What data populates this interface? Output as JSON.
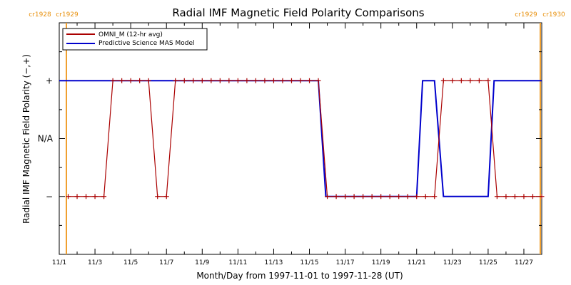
{
  "chart_data": {
    "type": "line",
    "title": "Radial IMF Magnetic Field Polarity Comparisons",
    "xlabel": "Month/Day from 1997-11-01 to 1997-11-28 (UT)",
    "ylabel": "Radial IMF Magnetic Field Polarity (−,+)",
    "xlim": [
      "1997-11-01",
      "1997-11-28"
    ],
    "x_tick_labels": [
      "11/1",
      "11/3",
      "11/5",
      "11/7",
      "11/9",
      "11/11",
      "11/13",
      "11/15",
      "11/17",
      "11/19",
      "11/21",
      "11/23",
      "11/25",
      "11/27"
    ],
    "y_tick_labels": [
      "−",
      "N/A",
      "+"
    ],
    "ylim": [
      -2,
      2
    ],
    "grid": false,
    "legend_position": "top-left",
    "carrington_markers": [
      {
        "label": "cr1928",
        "date": "1997-11-01"
      },
      {
        "label": "cr1929",
        "date": "1997-11-01"
      },
      {
        "label": "cr1929",
        "date": "1997-11-28"
      },
      {
        "label": "cr1930",
        "date": "1997-11-28"
      }
    ],
    "series": [
      {
        "name": "OMNI_M (12-hr avg)",
        "color": "#aa0000",
        "markers": true,
        "x": [
          "1997-11-01 12:00",
          "1997-11-02 00:00",
          "1997-11-02 12:00",
          "1997-11-03 00:00",
          "1997-11-03 12:00",
          "1997-11-04 00:00",
          "1997-11-04 12:00",
          "1997-11-05 00:00",
          "1997-11-05 12:00",
          "1997-11-06 00:00",
          "1997-11-06 12:00",
          "1997-11-07 00:00",
          "1997-11-07 12:00",
          "1997-11-08 00:00",
          "1997-11-08 12:00",
          "1997-11-09 00:00",
          "1997-11-09 12:00",
          "1997-11-10 00:00",
          "1997-11-10 12:00",
          "1997-11-11 00:00",
          "1997-11-11 12:00",
          "1997-11-12 00:00",
          "1997-11-12 12:00",
          "1997-11-13 00:00",
          "1997-11-13 12:00",
          "1997-11-14 00:00",
          "1997-11-14 12:00",
          "1997-11-15 00:00",
          "1997-11-15 12:00",
          "1997-11-16 00:00",
          "1997-11-16 12:00",
          "1997-11-17 00:00",
          "1997-11-17 12:00",
          "1997-11-18 00:00",
          "1997-11-18 12:00",
          "1997-11-19 00:00",
          "1997-11-19 12:00",
          "1997-11-20 00:00",
          "1997-11-20 12:00",
          "1997-11-21 00:00",
          "1997-11-21 12:00",
          "1997-11-22 00:00",
          "1997-11-22 12:00",
          "1997-11-23 00:00",
          "1997-11-23 12:00",
          "1997-11-24 00:00",
          "1997-11-24 12:00",
          "1997-11-25 00:00",
          "1997-11-25 12:00",
          "1997-11-26 00:00",
          "1997-11-26 12:00",
          "1997-11-27 00:00",
          "1997-11-27 12:00",
          "1997-11-28 00:00"
        ],
        "y": [
          -1,
          -1,
          -1,
          -1,
          -1,
          1,
          1,
          1,
          1,
          1,
          -1,
          -1,
          1,
          1,
          1,
          1,
          1,
          1,
          1,
          1,
          1,
          1,
          1,
          1,
          1,
          1,
          1,
          1,
          1,
          -1,
          -1,
          -1,
          -1,
          -1,
          -1,
          -1,
          -1,
          -1,
          -1,
          -1,
          -1,
          -1,
          1,
          1,
          1,
          1,
          1,
          1,
          -1,
          -1,
          -1,
          -1,
          -1,
          -1
        ]
      },
      {
        "name": "Predictive Science MAS Model",
        "color": "#0000cc",
        "markers": false,
        "x": [
          "1997-11-01 00:00",
          "1997-11-15 12:00",
          "1997-11-15 22:00",
          "1997-11-21 00:00",
          "1997-11-21 08:00",
          "1997-11-22 00:00",
          "1997-11-22 12:00",
          "1997-11-25 00:00",
          "1997-11-25 08:00",
          "1997-11-28 00:00"
        ],
        "y": [
          1,
          1,
          -1,
          -1,
          1,
          1,
          -1,
          -1,
          1,
          1
        ]
      }
    ]
  }
}
